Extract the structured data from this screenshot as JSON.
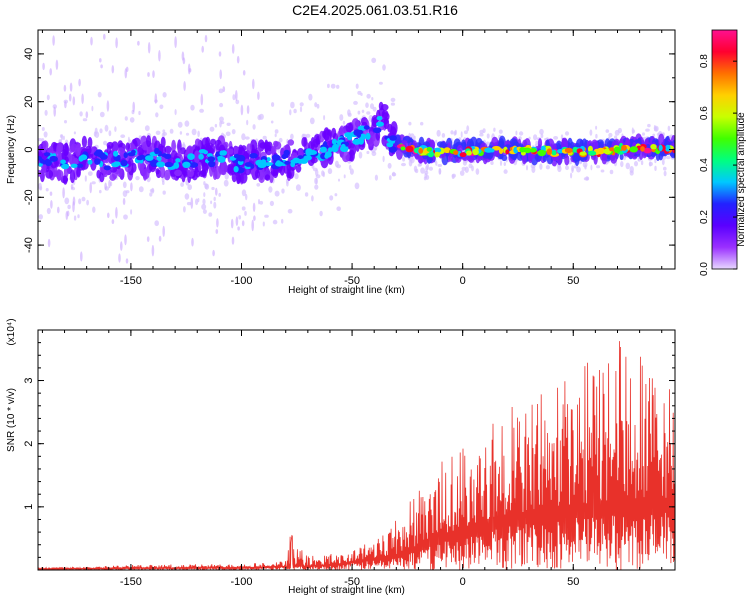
{
  "title": "C2E4.2025.061.03.51.R16",
  "chart_data": [
    {
      "type": "heatmap",
      "xlabel": "Height of straight line (km)",
      "ylabel": "Frequency (Hz)",
      "xlim": [
        -192,
        96
      ],
      "ylim": [
        -50,
        50
      ],
      "x_ticks": [
        -150,
        -100,
        -50,
        0,
        50
      ],
      "y_ticks": [
        -40,
        -20,
        0,
        20,
        40
      ],
      "colorbar": {
        "label": "Normalized spectral amplitude",
        "range": [
          0,
          0.92
        ],
        "ticks": [
          0.0,
          0.2,
          0.4,
          0.6,
          0.8
        ],
        "colors": [
          "#e8d8ff",
          "#9a30ff",
          "#5a00ff",
          "#2222ff",
          "#00c8ff",
          "#00ff80",
          "#40ff00",
          "#c8ff00",
          "#ffd000",
          "#ff7000",
          "#ff0030",
          "#ff1090"
        ],
        "position": "right"
      },
      "ridge_frequency_hz": [
        [
          -190,
          -4
        ],
        [
          -180,
          -6
        ],
        [
          -170,
          -3
        ],
        [
          -160,
          -5
        ],
        [
          -150,
          -4
        ],
        [
          -140,
          -3
        ],
        [
          -130,
          -5
        ],
        [
          -120,
          -4
        ],
        [
          -110,
          -3
        ],
        [
          -100,
          -6
        ],
        [
          -90,
          -5
        ],
        [
          -80,
          -4
        ],
        [
          -70,
          -2
        ],
        [
          -60,
          0
        ],
        [
          -50,
          4
        ],
        [
          -42,
          8
        ],
        [
          -36,
          13
        ],
        [
          -33,
          3
        ],
        [
          -25,
          1
        ],
        [
          -15,
          -1
        ],
        [
          0,
          -1
        ],
        [
          20,
          0
        ],
        [
          40,
          -1
        ],
        [
          60,
          -1
        ],
        [
          80,
          1
        ],
        [
          96,
          0
        ]
      ],
      "grid": false
    },
    {
      "type": "line",
      "xlabel": "Height of straight line (km)",
      "ylabel": "SNR (10 * v/v)",
      "y_multiplier": "(x10⁴)",
      "xlim": [
        -192,
        96
      ],
      "ylim": [
        0,
        3.8
      ],
      "x_ticks": [
        -150,
        -100,
        -50,
        0,
        50
      ],
      "y_ticks": [
        1,
        2,
        3
      ],
      "color": "#e8312a",
      "envelope_x10e4": [
        [
          -192,
          0.04
        ],
        [
          -150,
          0.08
        ],
        [
          -100,
          0.1
        ],
        [
          -80,
          0.14
        ],
        [
          -78,
          0.55
        ],
        [
          -70,
          0.22
        ],
        [
          -50,
          0.3
        ],
        [
          -40,
          0.55
        ],
        [
          -30,
          0.85
        ],
        [
          -20,
          1.3
        ],
        [
          -10,
          1.7
        ],
        [
          0,
          2.05
        ],
        [
          10,
          2.3
        ],
        [
          20,
          2.6
        ],
        [
          30,
          2.9
        ],
        [
          40,
          3.05
        ],
        [
          50,
          3.2
        ],
        [
          60,
          3.4
        ],
        [
          65,
          3.78
        ],
        [
          80,
          3.4
        ],
        [
          96,
          2.8
        ]
      ],
      "baseline_x10e4": [
        [
          -192,
          0.02
        ],
        [
          -100,
          0.04
        ],
        [
          -60,
          0.08
        ],
        [
          -30,
          0.25
        ],
        [
          -10,
          0.55
        ],
        [
          10,
          0.8
        ],
        [
          40,
          1.0
        ],
        [
          70,
          1.1
        ],
        [
          96,
          1.15
        ]
      ],
      "grid": false
    }
  ]
}
